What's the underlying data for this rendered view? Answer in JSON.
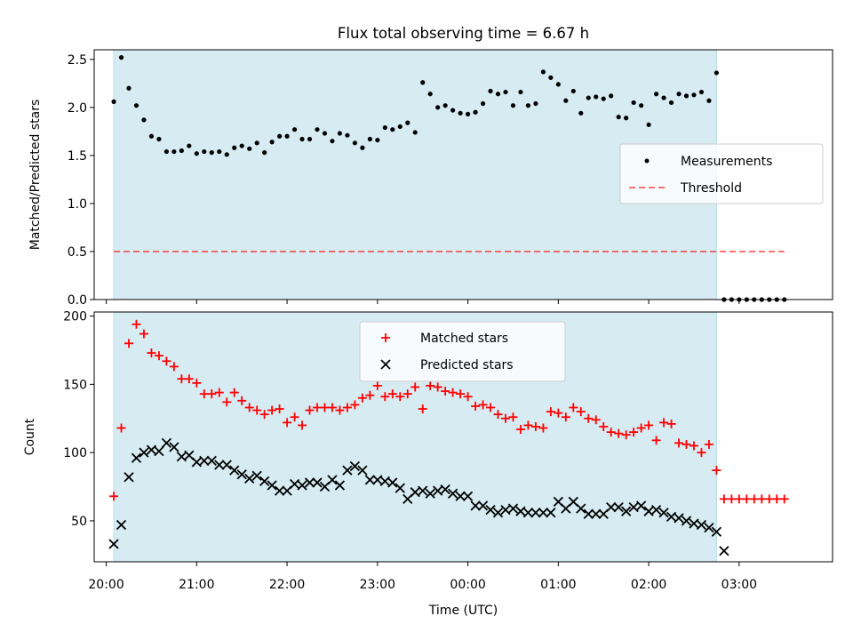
{
  "title": "Flux total observing time = 6.67 h",
  "colors": {
    "band": "#add8e6",
    "measurement": "#000000",
    "threshold": "#ff0000",
    "matched": "#ff0000",
    "predicted": "#000000"
  },
  "x_tick_labels": [
    "20:00",
    "21:00",
    "22:00",
    "23:00",
    "00:00",
    "01:00",
    "02:00",
    "03:00"
  ],
  "chart_data": [
    {
      "type": "scatter",
      "ylabel": "Matched/Predicted stars",
      "ylim": [
        0,
        2.6
      ],
      "yticks": [
        0.0,
        0.5,
        1.0,
        1.5,
        2.0,
        2.5
      ],
      "y_tick_labels": [
        "0.0",
        "0.5",
        "1.0",
        "1.5",
        "2.0",
        "2.5"
      ],
      "xlim": [
        "19:52",
        "04:02"
      ],
      "grid": false,
      "legend": "center-right",
      "shaded_interval": [
        "20:05",
        "02:45"
      ],
      "threshold": {
        "name": "Threshold",
        "value": 0.5,
        "range": [
          "20:05",
          "03:30"
        ]
      },
      "series": [
        {
          "name": "Measurements",
          "marker": "dot",
          "x": [
            "20:05",
            "20:10",
            "20:15",
            "20:20",
            "20:25",
            "20:30",
            "20:35",
            "20:40",
            "20:45",
            "20:50",
            "20:55",
            "21:00",
            "21:05",
            "21:10",
            "21:15",
            "21:20",
            "21:25",
            "21:30",
            "21:35",
            "21:40",
            "21:45",
            "21:50",
            "21:55",
            "22:00",
            "22:05",
            "22:10",
            "22:15",
            "22:20",
            "22:25",
            "22:30",
            "22:35",
            "22:40",
            "22:45",
            "22:50",
            "22:55",
            "23:00",
            "23:05",
            "23:10",
            "23:15",
            "23:20",
            "23:25",
            "23:30",
            "23:35",
            "23:40",
            "23:45",
            "23:50",
            "23:55",
            "00:00",
            "00:05",
            "00:10",
            "00:15",
            "00:20",
            "00:25",
            "00:30",
            "00:35",
            "00:40",
            "00:45",
            "00:50",
            "00:55",
            "01:00",
            "01:05",
            "01:10",
            "01:15",
            "01:20",
            "01:25",
            "01:30",
            "01:35",
            "01:40",
            "01:45",
            "01:50",
            "01:55",
            "02:00",
            "02:05",
            "02:10",
            "02:15",
            "02:20",
            "02:25",
            "02:30",
            "02:35",
            "02:40",
            "02:45",
            "02:50",
            "02:55",
            "03:00",
            "03:05",
            "03:10",
            "03:15",
            "03:20",
            "03:25",
            "03:30"
          ],
          "y": [
            2.06,
            2.52,
            2.2,
            2.02,
            1.87,
            1.7,
            1.67,
            1.54,
            1.54,
            1.55,
            1.6,
            1.52,
            1.54,
            1.53,
            1.54,
            1.51,
            1.58,
            1.6,
            1.57,
            1.63,
            1.53,
            1.64,
            1.7,
            1.7,
            1.77,
            1.67,
            1.67,
            1.77,
            1.73,
            1.65,
            1.73,
            1.71,
            1.63,
            1.58,
            1.67,
            1.66,
            1.79,
            1.77,
            1.8,
            1.84,
            1.74,
            2.26,
            2.14,
            2.0,
            2.02,
            1.97,
            1.94,
            1.93,
            1.95,
            2.04,
            2.17,
            2.14,
            2.16,
            2.02,
            2.16,
            2.02,
            2.04,
            2.37,
            2.31,
            2.24,
            2.07,
            2.17,
            1.94,
            2.1,
            2.11,
            2.09,
            2.12,
            1.9,
            1.89,
            2.05,
            2.02,
            1.82,
            2.14,
            2.1,
            2.05,
            2.14,
            2.12,
            2.13,
            2.16,
            2.07,
            2.36,
            0.0,
            0.0,
            0.0,
            0.0,
            0.0,
            0.0,
            0.0,
            0.0,
            0.0
          ]
        }
      ]
    },
    {
      "type": "scatter",
      "ylabel": "Count",
      "xlabel": "Time (UTC)",
      "ylim": [
        20,
        203
      ],
      "yticks": [
        50,
        100,
        150,
        200
      ],
      "y_tick_labels": [
        "50",
        "100",
        "150",
        "200"
      ],
      "xlim": [
        "19:52",
        "04:02"
      ],
      "grid": false,
      "legend": "top-center",
      "shaded_interval": [
        "20:05",
        "02:45"
      ],
      "series": [
        {
          "name": "Matched stars",
          "marker": "plus",
          "x": [
            "20:05",
            "20:10",
            "20:15",
            "20:20",
            "20:25",
            "20:30",
            "20:35",
            "20:40",
            "20:45",
            "20:50",
            "20:55",
            "21:00",
            "21:05",
            "21:10",
            "21:15",
            "21:20",
            "21:25",
            "21:30",
            "21:35",
            "21:40",
            "21:45",
            "21:50",
            "21:55",
            "22:00",
            "22:05",
            "22:10",
            "22:15",
            "22:20",
            "22:25",
            "22:30",
            "22:35",
            "22:40",
            "22:45",
            "22:50",
            "22:55",
            "23:00",
            "23:05",
            "23:10",
            "23:15",
            "23:20",
            "23:25",
            "23:30",
            "23:35",
            "23:40",
            "23:45",
            "23:50",
            "23:55",
            "00:00",
            "00:05",
            "00:10",
            "00:15",
            "00:20",
            "00:25",
            "00:30",
            "00:35",
            "00:40",
            "00:45",
            "00:50",
            "00:55",
            "01:00",
            "01:05",
            "01:10",
            "01:15",
            "01:20",
            "01:25",
            "01:30",
            "01:35",
            "01:40",
            "01:45",
            "01:50",
            "01:55",
            "02:00",
            "02:05",
            "02:10",
            "02:15",
            "02:20",
            "02:25",
            "02:30",
            "02:35",
            "02:40",
            "02:45",
            "02:50",
            "02:55",
            "03:00",
            "03:05",
            "03:10",
            "03:15",
            "03:20",
            "03:25",
            "03:30"
          ],
          "y": [
            68,
            118,
            180,
            194,
            187,
            173,
            171,
            167,
            163,
            154,
            154,
            151,
            143,
            143,
            144,
            137,
            144,
            138,
            133,
            131,
            128,
            131,
            132,
            122,
            126,
            120,
            131,
            133,
            133,
            133,
            131,
            133,
            135,
            140,
            142,
            149,
            141,
            143,
            141,
            143,
            148,
            132,
            149,
            148,
            145,
            144,
            143,
            141,
            134,
            135,
            133,
            128,
            125,
            126,
            117,
            120,
            119,
            118,
            130,
            129,
            126,
            133,
            130,
            125,
            124,
            119,
            115,
            114,
            113,
            115,
            118,
            120,
            109,
            122,
            121,
            107,
            106,
            105,
            100,
            106,
            87,
            66,
            66,
            66,
            66,
            66,
            66,
            66,
            66,
            66
          ]
        },
        {
          "name": "Predicted stars",
          "marker": "x",
          "x": [
            "20:05",
            "20:10",
            "20:15",
            "20:20",
            "20:25",
            "20:30",
            "20:35",
            "20:40",
            "20:45",
            "20:50",
            "20:55",
            "21:00",
            "21:05",
            "21:10",
            "21:15",
            "21:20",
            "21:25",
            "21:30",
            "21:35",
            "21:40",
            "21:45",
            "21:50",
            "21:55",
            "22:00",
            "22:05",
            "22:10",
            "22:15",
            "22:20",
            "22:25",
            "22:30",
            "22:35",
            "22:40",
            "22:45",
            "22:50",
            "22:55",
            "23:00",
            "23:05",
            "23:10",
            "23:15",
            "23:20",
            "23:25",
            "23:30",
            "23:35",
            "23:40",
            "23:45",
            "23:50",
            "23:55",
            "00:00",
            "00:05",
            "00:10",
            "00:15",
            "00:20",
            "00:25",
            "00:30",
            "00:35",
            "00:40",
            "00:45",
            "00:50",
            "00:55",
            "01:00",
            "01:05",
            "01:10",
            "01:15",
            "01:20",
            "01:25",
            "01:30",
            "01:35",
            "01:40",
            "01:45",
            "01:50",
            "01:55",
            "02:00",
            "02:05",
            "02:10",
            "02:15",
            "02:20",
            "02:25",
            "02:30",
            "02:35",
            "02:40",
            "02:45",
            "02:50"
          ],
          "y": [
            33,
            47,
            82,
            96,
            100,
            102,
            101,
            107,
            104,
            97,
            98,
            93,
            94,
            94,
            91,
            91,
            87,
            84,
            81,
            83,
            79,
            76,
            72,
            72,
            77,
            76,
            78,
            78,
            75,
            80,
            76,
            87,
            90,
            87,
            80,
            80,
            79,
            78,
            74,
            66,
            71,
            72,
            70,
            72,
            73,
            70,
            68,
            68,
            61,
            61,
            58,
            56,
            58,
            59,
            57,
            56,
            56,
            56,
            56,
            64,
            59,
            64,
            59,
            55,
            55,
            55,
            60,
            60,
            57,
            60,
            61,
            57,
            58,
            56,
            53,
            52,
            50,
            48,
            47,
            45,
            42,
            28
          ]
        }
      ]
    }
  ]
}
